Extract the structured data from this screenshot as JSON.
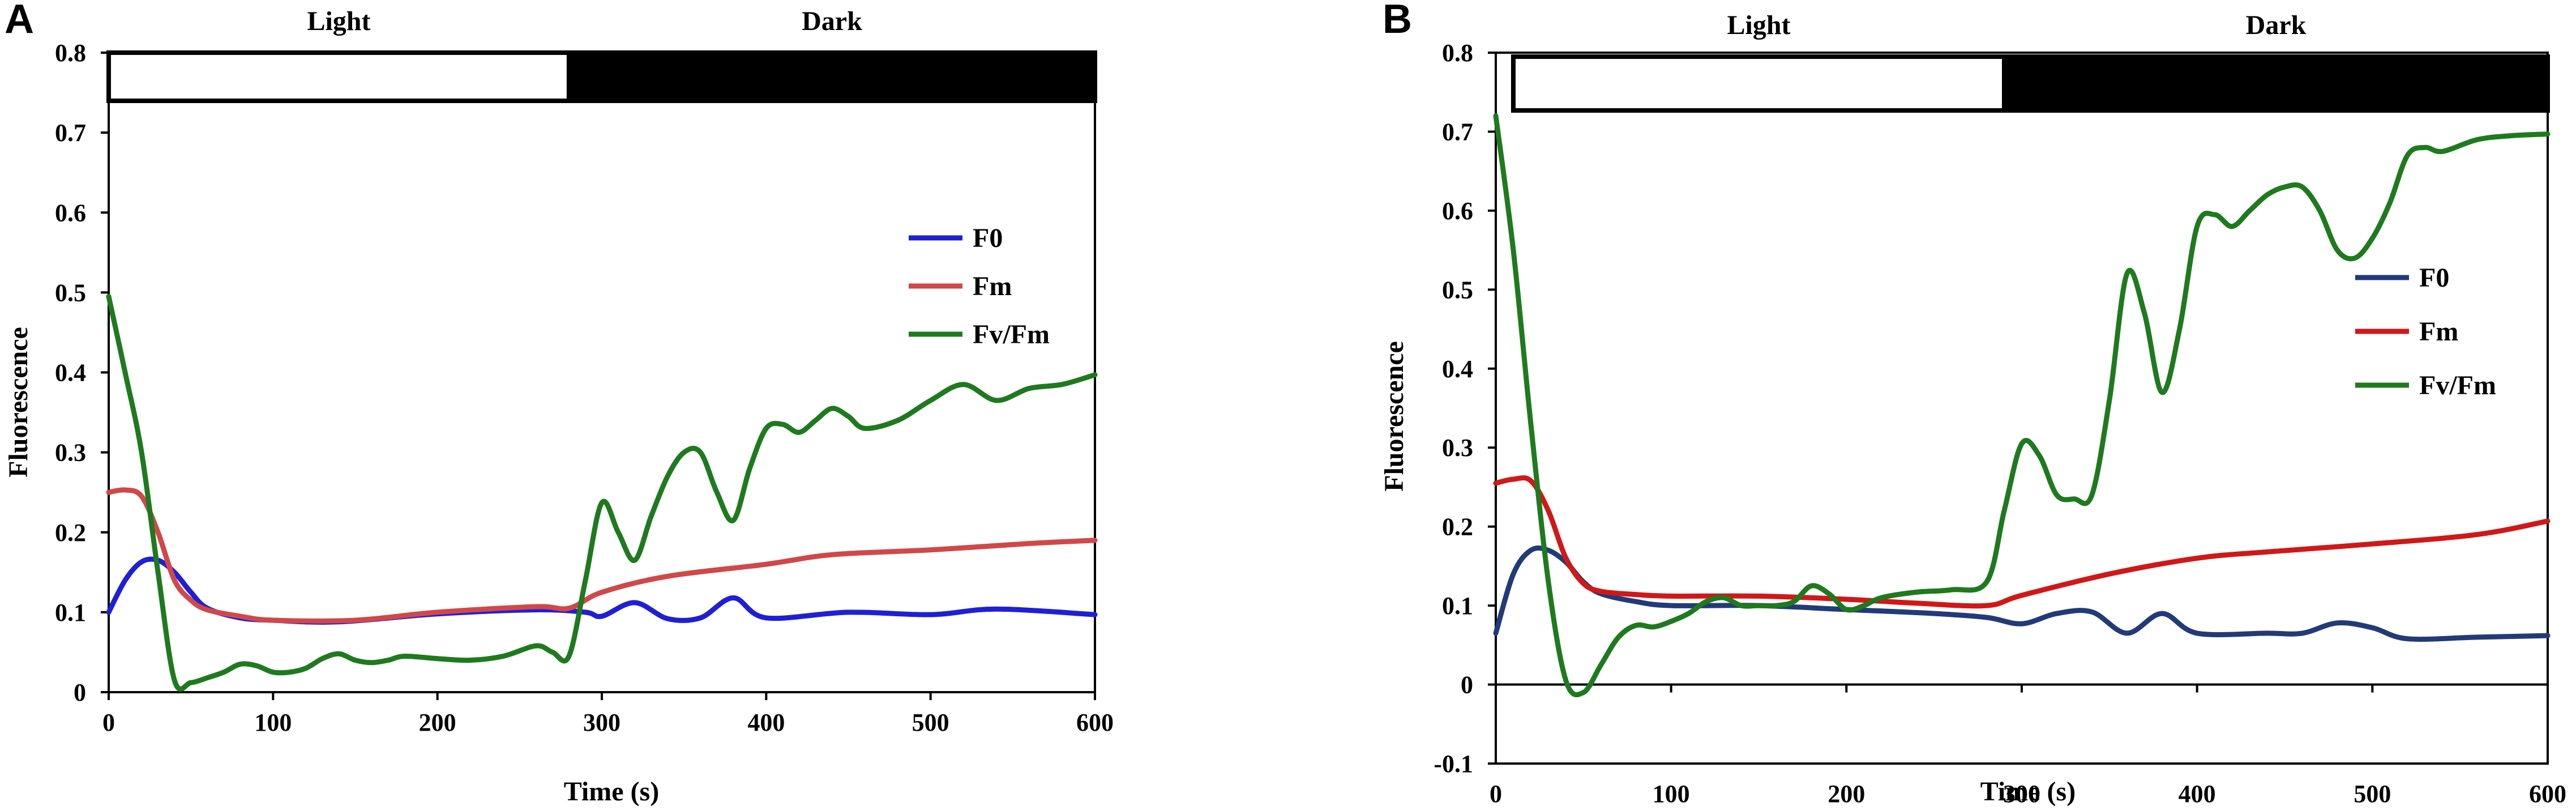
{
  "chart_data": [
    {
      "type": "line",
      "panel": "A",
      "xlabel": "Time (s)",
      "ylabel": "Fluorescence",
      "xlim": [
        0,
        600
      ],
      "ylim": [
        0,
        0.8
      ],
      "x_ticks": [
        0,
        100,
        200,
        300,
        400,
        500,
        600
      ],
      "y_ticks": [
        0,
        0.1,
        0.2,
        0.3,
        0.4,
        0.5,
        0.6,
        0.7,
        0.8
      ],
      "y_tick_labels": [
        "0",
        "0.1",
        "0.2",
        "0.3",
        "0.4",
        "0.5",
        "0.6",
        "0.7",
        "0.8"
      ],
      "periods": [
        {
          "label": "Light",
          "start": 0,
          "end": 280,
          "fill": "#ffffff"
        },
        {
          "label": "Dark",
          "start": 280,
          "end": 600,
          "fill": "#000000"
        }
      ],
      "legend_position": "right",
      "series": [
        {
          "name": "F0",
          "color": "#1f1fd6",
          "x": [
            0,
            10,
            20,
            30,
            40,
            50,
            60,
            80,
            100,
            140,
            200,
            260,
            290,
            300,
            320,
            340,
            360,
            380,
            400,
            450,
            500,
            540,
            600
          ],
          "y": [
            0.1,
            0.14,
            0.163,
            0.165,
            0.15,
            0.125,
            0.105,
            0.093,
            0.09,
            0.088,
            0.098,
            0.103,
            0.1,
            0.095,
            0.112,
            0.092,
            0.093,
            0.118,
            0.093,
            0.1,
            0.097,
            0.104,
            0.097
          ]
        },
        {
          "name": "Fm",
          "color": "#d0484a",
          "x": [
            0,
            10,
            20,
            30,
            40,
            50,
            60,
            80,
            100,
            150,
            200,
            260,
            280,
            300,
            340,
            400,
            440,
            500,
            560,
            600
          ],
          "y": [
            0.25,
            0.253,
            0.245,
            0.2,
            0.14,
            0.115,
            0.103,
            0.095,
            0.09,
            0.09,
            0.1,
            0.107,
            0.105,
            0.125,
            0.145,
            0.16,
            0.172,
            0.178,
            0.186,
            0.19
          ]
        },
        {
          "name": "Fv/Fm",
          "color": "#1e7a1e",
          "x": [
            0,
            10,
            20,
            30,
            40,
            50,
            60,
            70,
            80,
            90,
            100,
            110,
            120,
            130,
            140,
            150,
            160,
            170,
            180,
            200,
            220,
            240,
            260,
            270,
            280,
            290,
            300,
            310,
            320,
            330,
            340,
            350,
            360,
            370,
            380,
            390,
            400,
            410,
            420,
            430,
            440,
            450,
            460,
            480,
            500,
            520,
            540,
            560,
            580,
            600
          ],
          "y": [
            0.495,
            0.4,
            0.3,
            0.15,
            0.015,
            0.012,
            0.018,
            0.025,
            0.035,
            0.033,
            0.025,
            0.025,
            0.03,
            0.042,
            0.048,
            0.04,
            0.037,
            0.04,
            0.045,
            0.042,
            0.04,
            0.045,
            0.058,
            0.05,
            0.045,
            0.14,
            0.237,
            0.2,
            0.165,
            0.22,
            0.27,
            0.3,
            0.3,
            0.25,
            0.215,
            0.28,
            0.33,
            0.335,
            0.325,
            0.34,
            0.355,
            0.345,
            0.33,
            0.34,
            0.365,
            0.385,
            0.365,
            0.38,
            0.385,
            0.397
          ]
        }
      ]
    },
    {
      "type": "line",
      "panel": "B",
      "xlabel": "Time (s)",
      "ylabel": "Fluorescence",
      "xlim": [
        0,
        600
      ],
      "ylim": [
        -0.1,
        0.8
      ],
      "x_ticks": [
        0,
        100,
        200,
        300,
        400,
        500,
        600
      ],
      "y_ticks": [
        -0.1,
        0,
        0.1,
        0.2,
        0.3,
        0.4,
        0.5,
        0.6,
        0.7,
        0.8
      ],
      "y_tick_labels": [
        "-0.1",
        "0",
        "0.1",
        "0.2",
        "0.3",
        "0.4",
        "0.5",
        "0.6",
        "0.7",
        "0.8"
      ],
      "periods": [
        {
          "label": "Light",
          "start": 10,
          "end": 290,
          "fill": "#ffffff"
        },
        {
          "label": "Dark",
          "start": 290,
          "end": 600,
          "fill": "#000000"
        }
      ],
      "legend_position": "right",
      "series": [
        {
          "name": "F0",
          "color": "#223a78",
          "x": [
            0,
            10,
            20,
            30,
            40,
            50,
            60,
            80,
            100,
            150,
            200,
            250,
            280,
            300,
            320,
            340,
            360,
            380,
            400,
            440,
            460,
            480,
            500,
            520,
            560,
            600
          ],
          "y": [
            0.065,
            0.14,
            0.17,
            0.17,
            0.155,
            0.13,
            0.115,
            0.105,
            0.1,
            0.1,
            0.095,
            0.09,
            0.085,
            0.077,
            0.09,
            0.092,
            0.065,
            0.09,
            0.065,
            0.065,
            0.065,
            0.078,
            0.072,
            0.058,
            0.06,
            0.062
          ]
        },
        {
          "name": "Fm",
          "color": "#d01818",
          "x": [
            0,
            10,
            20,
            30,
            40,
            50,
            60,
            80,
            100,
            150,
            200,
            240,
            280,
            300,
            350,
            400,
            440,
            500,
            560,
            600
          ],
          "y": [
            0.255,
            0.26,
            0.258,
            0.22,
            0.16,
            0.128,
            0.118,
            0.114,
            0.112,
            0.112,
            0.108,
            0.103,
            0.1,
            0.113,
            0.14,
            0.16,
            0.168,
            0.178,
            0.19,
            0.207
          ]
        },
        {
          "name": "Fv/Fm",
          "color": "#1e7a1e",
          "x": [
            0,
            10,
            20,
            30,
            40,
            50,
            60,
            70,
            80,
            90,
            100,
            110,
            120,
            130,
            140,
            150,
            160,
            170,
            180,
            190,
            200,
            210,
            220,
            240,
            260,
            280,
            290,
            300,
            310,
            320,
            330,
            340,
            350,
            360,
            370,
            380,
            390,
            400,
            410,
            420,
            430,
            440,
            450,
            460,
            470,
            480,
            490,
            500,
            510,
            520,
            530,
            540,
            560,
            580,
            600
          ],
          "y": [
            0.72,
            0.55,
            0.33,
            0.13,
            0.005,
            -0.01,
            0.025,
            0.06,
            0.075,
            0.073,
            0.08,
            0.09,
            0.105,
            0.11,
            0.1,
            0.1,
            0.1,
            0.105,
            0.125,
            0.115,
            0.095,
            0.1,
            0.11,
            0.117,
            0.12,
            0.13,
            0.22,
            0.305,
            0.29,
            0.24,
            0.235,
            0.24,
            0.36,
            0.52,
            0.47,
            0.37,
            0.45,
            0.58,
            0.595,
            0.58,
            0.6,
            0.62,
            0.63,
            0.63,
            0.6,
            0.55,
            0.54,
            0.565,
            0.61,
            0.67,
            0.68,
            0.675,
            0.69,
            0.695,
            0.697
          ]
        }
      ]
    }
  ]
}
